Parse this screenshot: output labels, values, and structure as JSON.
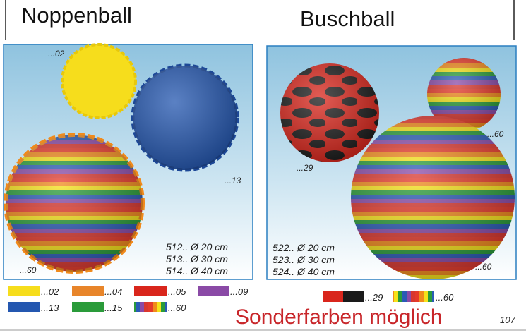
{
  "left": {
    "title": "Noppenball",
    "ball_labels": [
      "...02",
      "...13",
      "...60"
    ],
    "sizes": [
      "512..  Ø  20 cm",
      "513..  Ø  30 cm",
      "514..  Ø  40 cm"
    ],
    "swatches": [
      "...02",
      "...04",
      "...05",
      "...09",
      "...13",
      "...15",
      "...60"
    ]
  },
  "right": {
    "title": "Buschball",
    "ball_labels": [
      "...29",
      "...60",
      "...60"
    ],
    "sizes": [
      "522..  Ø  20 cm",
      "523..  Ø  30 cm",
      "524..  Ø  40 cm"
    ],
    "swatches": [
      "...29",
      "...60"
    ]
  },
  "footer": {
    "note": "Sonderfarben möglich",
    "page_number": "107"
  }
}
